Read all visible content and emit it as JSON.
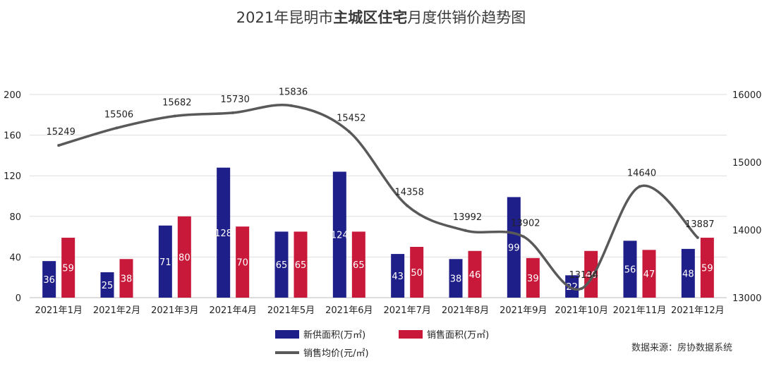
{
  "chart_data": {
    "type": "bar",
    "title_parts": [
      "2021年昆明市",
      "主城区住宅",
      "月度供销价趋势图"
    ],
    "categories": [
      "2021年1月",
      "2021年2月",
      "2021年3月",
      "2021年4月",
      "2021年5月",
      "2021年6月",
      "2021年7月",
      "2021年8月",
      "2021年9月",
      "2021年10月",
      "2021年11月",
      "2021年12月"
    ],
    "series": [
      {
        "name": "新供面积(万㎡)",
        "type": "bar",
        "axis": "left",
        "color": "#1f1f8a",
        "values": [
          36,
          25,
          71,
          128,
          65,
          124,
          43,
          38,
          99,
          22,
          56,
          48
        ]
      },
      {
        "name": "销售面积(万㎡)",
        "type": "bar",
        "axis": "left",
        "color": "#c8193a",
        "values": [
          59,
          38,
          80,
          70,
          65,
          65,
          50,
          46,
          39,
          46,
          47,
          59
        ]
      },
      {
        "name": "销售均价(元/㎡)",
        "type": "line",
        "axis": "right",
        "color": "#595959",
        "values": [
          15249,
          15506,
          15682,
          15730,
          15836,
          15452,
          14358,
          13992,
          13902,
          13134,
          14640,
          13887
        ]
      }
    ],
    "y_left": {
      "min": 0,
      "max": 200,
      "ticks": [
        0,
        40,
        80,
        120,
        160,
        200
      ]
    },
    "y_right": {
      "min": 13000,
      "max": 16000,
      "ticks": [
        13000,
        14000,
        15000,
        16000
      ]
    },
    "grid": true,
    "legend_position": "bottom",
    "source": "数据来源：房协数据系统"
  }
}
